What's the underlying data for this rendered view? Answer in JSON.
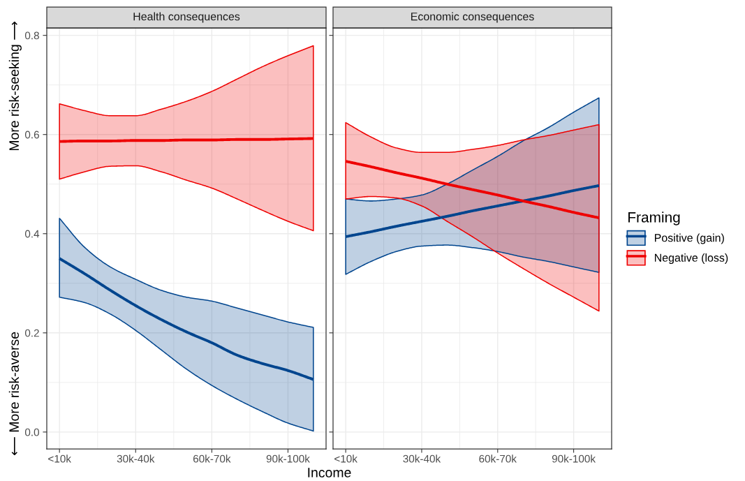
{
  "chart_data": [
    {
      "type": "line",
      "title": "Health consequences",
      "xlabel": "Income",
      "categories": [
        "<10k",
        null,
        null,
        "30k-40k",
        null,
        null,
        "60k-70k",
        null,
        null,
        "90k-100k",
        null
      ],
      "ylim": [
        -0.034,
        0.815
      ],
      "yticks": [
        {
          "value": 0,
          "label": "0.0"
        },
        {
          "value": 0.2,
          "label": "0.2"
        },
        {
          "value": 0.4,
          "label": "0.4"
        },
        {
          "value": 0.6,
          "label": "0.6"
        },
        {
          "value": 0.8,
          "label": "0.8"
        }
      ],
      "grid": true,
      "annotations": [
        "⟵ More risk-averse",
        "More risk-seeking ⟶"
      ],
      "series": [
        {
          "color": "#00458e",
          "values": [
            0.35,
            0.319,
            0.286,
            0.255,
            0.227,
            0.202,
            0.18,
            0.155,
            0.138,
            0.124,
            0.106
          ],
          "lower": [
            0.272,
            0.261,
            0.238,
            0.205,
            0.166,
            0.127,
            0.094,
            0.066,
            0.041,
            0.018,
            0.002
          ],
          "upper": [
            0.431,
            0.372,
            0.333,
            0.308,
            0.286,
            0.272,
            0.264,
            0.25,
            0.236,
            0.222,
            0.211
          ]
        },
        {
          "color": "#ee0000",
          "values": [
            0.586,
            0.587,
            0.587,
            0.588,
            0.588,
            0.589,
            0.589,
            0.59,
            0.59,
            0.591,
            0.592
          ],
          "lower": [
            0.51,
            0.525,
            0.536,
            0.537,
            0.525,
            0.508,
            0.492,
            0.47,
            0.447,
            0.425,
            0.406
          ],
          "upper": [
            0.662,
            0.648,
            0.638,
            0.638,
            0.651,
            0.667,
            0.687,
            0.712,
            0.737,
            0.759,
            0.779
          ]
        }
      ]
    },
    {
      "type": "line",
      "title": "Economic consequences",
      "categories": [
        "<10k",
        null,
        null,
        "30k-40k",
        null,
        null,
        "60k-70k",
        null,
        null,
        "90k-100k",
        null
      ],
      "ylim": [
        -0.034,
        0.815
      ],
      "yticks": [
        0,
        0.2,
        0.4,
        0.6,
        0.8
      ],
      "tick_labels": "x",
      "grid": true,
      "legend": "right",
      "legend_title": "Framing",
      "series": [
        {
          "name": "Positive (gain)",
          "color": "#00458e",
          "values": [
            0.394,
            0.404,
            0.415,
            0.425,
            0.435,
            0.446,
            0.456,
            0.466,
            0.476,
            0.487,
            0.497
          ],
          "lower": [
            0.318,
            0.344,
            0.364,
            0.375,
            0.377,
            0.372,
            0.364,
            0.353,
            0.344,
            0.333,
            0.322
          ],
          "upper": [
            0.47,
            0.466,
            0.47,
            0.478,
            0.5,
            0.528,
            0.556,
            0.587,
            0.614,
            0.645,
            0.674
          ]
        },
        {
          "name": "Negative (loss)",
          "color": "#ee0000",
          "values": [
            0.546,
            0.535,
            0.523,
            0.512,
            0.5,
            0.489,
            0.478,
            0.466,
            0.455,
            0.443,
            0.432
          ],
          "lower": [
            0.47,
            0.475,
            0.472,
            0.456,
            0.425,
            0.394,
            0.361,
            0.33,
            0.3,
            0.272,
            0.244
          ],
          "upper": [
            0.624,
            0.595,
            0.573,
            0.564,
            0.564,
            0.57,
            0.578,
            0.589,
            0.598,
            0.609,
            0.62
          ]
        }
      ]
    }
  ]
}
